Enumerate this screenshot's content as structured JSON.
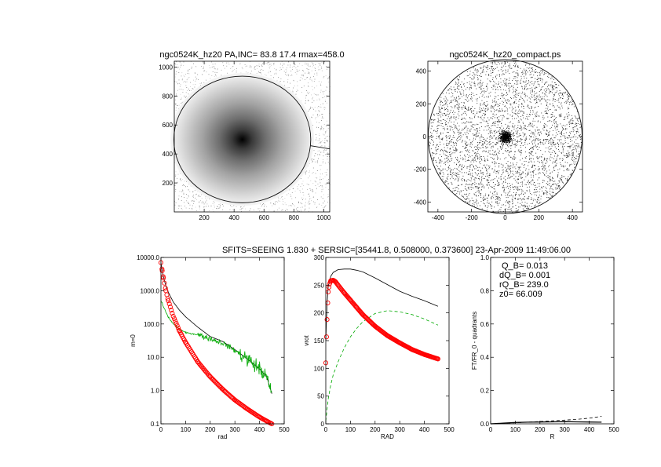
{
  "figure_title": "SFITS=SEEING 1.830 + SERSIC=[35441.8, 0.508000, 0.373600]  23-Apr-2009 11:49:06.00",
  "chart_data": [
    {
      "type": "heatmap",
      "title": "ngc0524K_hz20 PA,INC= 83.8 17.4 rmax=458.0",
      "xlabel": "",
      "ylabel": "",
      "xlim": [
        0,
        1040
      ],
      "ylim": [
        0,
        1040
      ],
      "xticks": [
        "200",
        "400",
        "600",
        "800",
        "1000"
      ],
      "yticks": [
        "200",
        "400",
        "600",
        "800",
        "1000"
      ],
      "xtick_values": [
        200,
        400,
        600,
        800,
        1000
      ],
      "ytick_values": [
        200,
        400,
        600,
        800,
        1000
      ],
      "center": [
        455,
        500
      ],
      "ellipse_radii": [
        437,
        458
      ],
      "colormap": "gray, darkest at center"
    },
    {
      "type": "scatter",
      "title": "ngc0524K_hz20_compact.ps",
      "xlabel": "",
      "ylabel": "",
      "xlim": [
        -460,
        460
      ],
      "ylim": [
        -460,
        460
      ],
      "xticks": [
        "-400",
        "-200",
        "0",
        "200",
        "400"
      ],
      "yticks": [
        "-400",
        "-200",
        "0",
        "200",
        "400"
      ],
      "xtick_values": [
        -400,
        -200,
        0,
        200,
        400
      ],
      "ytick_values": [
        -400,
        -200,
        0,
        200,
        400
      ],
      "circle_radius": 458
    },
    {
      "type": "line",
      "title": "",
      "xlabel": "rad",
      "ylabel": "m=0",
      "xlim": [
        0,
        500
      ],
      "ylim": [
        0.1,
        10000
      ],
      "yscale": "log",
      "xticks": [
        "0",
        "100",
        "200",
        "300",
        "400",
        "500"
      ],
      "yticks": [
        "0.1",
        "1.0",
        "10.0",
        "100.0",
        "1000.0",
        "10000.0"
      ],
      "xtick_values": [
        0,
        100,
        200,
        300,
        400,
        500
      ],
      "ytick_values": [
        0.1,
        1,
        10,
        100,
        1000,
        10000
      ],
      "series": [
        {
          "color": "#000000",
          "style": "solid",
          "x": [
            0,
            5,
            10,
            20,
            30,
            50,
            75,
            100,
            150,
            200,
            250,
            300,
            350,
            400,
            430,
            450
          ],
          "y": [
            7000,
            4200,
            2600,
            1400,
            900,
            460,
            260,
            165,
            80,
            42,
            30,
            17,
            9,
            4.5,
            2.5,
            0.8
          ]
        },
        {
          "color": "#00aa00",
          "style": "solid noisy",
          "x": [
            0,
            5,
            10,
            20,
            30,
            50,
            75,
            100,
            150,
            200,
            250,
            300,
            350,
            400,
            430,
            450
          ],
          "y": [
            480,
            430,
            330,
            230,
            160,
            100,
            70,
            55,
            48,
            36,
            27,
            16,
            9,
            4.5,
            2.5,
            0.7
          ]
        },
        {
          "color": "#ff0000",
          "style": "markers",
          "x": [
            0,
            5,
            10,
            20,
            30,
            50,
            75,
            100,
            150,
            200,
            250,
            300,
            350,
            400,
            430,
            450
          ],
          "y": [
            7000,
            4000,
            2400,
            1000,
            500,
            170,
            62,
            28,
            7.2,
            2.6,
            1.1,
            0.52,
            0.28,
            0.16,
            0.12,
            0.1
          ]
        }
      ]
    },
    {
      "type": "line",
      "title": "",
      "xlabel": "RAD",
      "ylabel": "vrot",
      "xlim": [
        0,
        500
      ],
      "ylim": [
        0,
        300
      ],
      "xticks": [
        "0",
        "100",
        "200",
        "300",
        "400",
        "500"
      ],
      "yticks": [
        "0",
        "50",
        "100",
        "150",
        "200",
        "250",
        "300"
      ],
      "xtick_values": [
        0,
        100,
        200,
        300,
        400,
        500
      ],
      "ytick_values": [
        0,
        50,
        100,
        150,
        200,
        250,
        300
      ],
      "series": [
        {
          "color": "#000000",
          "style": "solid",
          "x": [
            0,
            5,
            10,
            20,
            30,
            50,
            75,
            100,
            125,
            150,
            200,
            250,
            300,
            350,
            400,
            455
          ],
          "y": [
            150,
            215,
            248,
            266,
            273,
            278,
            279,
            279,
            277,
            274,
            263,
            251,
            239,
            230,
            222,
            212
          ]
        },
        {
          "color": "#00aa00",
          "style": "dashed",
          "x": [
            0,
            10,
            20,
            30,
            50,
            75,
            100,
            125,
            150,
            200,
            250,
            300,
            350,
            400,
            455
          ],
          "y": [
            5,
            45,
            70,
            88,
            112,
            137,
            157,
            172,
            184,
            199,
            204,
            202,
            197,
            189,
            178
          ]
        },
        {
          "color": "#ff0000",
          "style": "markers",
          "x": [
            0,
            5,
            10,
            15,
            20,
            30,
            40,
            50,
            75,
            100,
            125,
            150,
            200,
            250,
            300,
            350,
            400,
            455
          ],
          "y": [
            110,
            188,
            238,
            252,
            258,
            259,
            256,
            250,
            236,
            223,
            210,
            197,
            176,
            159,
            146,
            134,
            125,
            117
          ]
        }
      ]
    },
    {
      "type": "line",
      "title": "",
      "xlabel": "R",
      "ylabel": "FT/FR_0 - quadrants",
      "xlim": [
        0,
        500
      ],
      "ylim": [
        0,
        1
      ],
      "xticks": [
        "0",
        "100",
        "200",
        "300",
        "400",
        "500"
      ],
      "yticks": [
        "0.0",
        "0.2",
        "0.4",
        "0.6",
        "0.8",
        "1.0"
      ],
      "xtick_values": [
        0,
        100,
        200,
        300,
        400,
        500
      ],
      "ytick_values": [
        0,
        0.2,
        0.4,
        0.6,
        0.8,
        1.0
      ],
      "annotations": [
        "Q_B=  0.013",
        "dQ_B=  0.001",
        "rQ_B=  239.0",
        "z0= 66.009"
      ],
      "series": [
        {
          "color": "#000000",
          "style": "solid",
          "x": [
            0,
            50,
            100,
            150,
            200,
            250,
            300,
            350,
            400,
            450
          ],
          "y": [
            0.0,
            0.004,
            0.008,
            0.01,
            0.011,
            0.012,
            0.013,
            0.012,
            0.011,
            0.01
          ]
        },
        {
          "color": "#000000",
          "style": "dashed",
          "x": [
            0,
            50,
            100,
            150,
            200,
            250,
            300,
            350,
            400,
            450
          ],
          "y": [
            0.0,
            0.003,
            0.006,
            0.01,
            0.014,
            0.018,
            0.022,
            0.027,
            0.034,
            0.045
          ]
        }
      ]
    }
  ]
}
